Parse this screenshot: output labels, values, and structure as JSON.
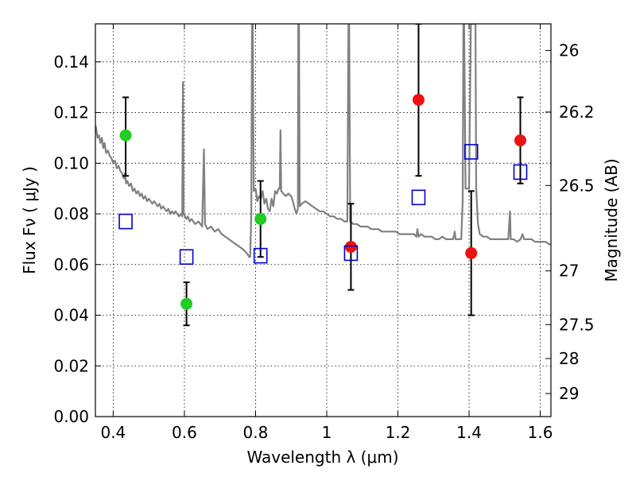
{
  "chart_data": {
    "type": "scatter",
    "xlabel": "Wavelength  λ (μm)",
    "ylabel": "Flux  Fν  ( μJy )",
    "y2label": "Magnitude (AB)",
    "xlim": [
      0.35,
      1.63
    ],
    "ylim": [
      0.0,
      0.155
    ],
    "grid": true,
    "x_ticks": [
      {
        "value": 0.4,
        "label": "0.4"
      },
      {
        "value": 0.6,
        "label": "0.6"
      },
      {
        "value": 0.8,
        "label": "0.8"
      },
      {
        "value": 1.0,
        "label": "1"
      },
      {
        "value": 1.2,
        "label": "1.2"
      },
      {
        "value": 1.4,
        "label": "1.4"
      },
      {
        "value": 1.6,
        "label": "1.6"
      }
    ],
    "y_ticks": [
      {
        "value": 0.0,
        "label": "0.00"
      },
      {
        "value": 0.02,
        "label": "0.02"
      },
      {
        "value": 0.04,
        "label": "0.04"
      },
      {
        "value": 0.06,
        "label": "0.06"
      },
      {
        "value": 0.08,
        "label": "0.08"
      },
      {
        "value": 0.1,
        "label": "0.10"
      },
      {
        "value": 0.12,
        "label": "0.12"
      },
      {
        "value": 0.14,
        "label": "0.14"
      }
    ],
    "y2_ticks": [
      {
        "flux": 0.1445,
        "label": "26"
      },
      {
        "flux": 0.1202,
        "label": "26.2"
      },
      {
        "flux": 0.0912,
        "label": "26.5"
      },
      {
        "flux": 0.0575,
        "label": "27"
      },
      {
        "flux": 0.0363,
        "label": "27.5"
      },
      {
        "flux": 0.0229,
        "label": "28"
      },
      {
        "flux": 0.0091,
        "label": "29"
      }
    ],
    "series": [
      {
        "name": "green-detections",
        "color": "#22cc22",
        "marker": "circle",
        "points": [
          {
            "x": 0.435,
            "y": 0.111,
            "err_lo": 0.095,
            "err_hi": 0.126
          },
          {
            "x": 0.606,
            "y": 0.0445,
            "err_lo": 0.036,
            "err_hi": 0.053
          },
          {
            "x": 0.814,
            "y": 0.078,
            "err_lo": 0.063,
            "err_hi": 0.093
          }
        ]
      },
      {
        "name": "red-detections",
        "color": "#ee1111",
        "marker": "circle",
        "points": [
          {
            "x": 1.068,
            "y": 0.067,
            "err_lo": 0.05,
            "err_hi": 0.084
          },
          {
            "x": 1.258,
            "y": 0.125,
            "err_lo": 0.095,
            "err_hi": 0.155
          },
          {
            "x": 1.406,
            "y": 0.0645,
            "err_lo": 0.04,
            "err_hi": 0.089
          },
          {
            "x": 1.544,
            "y": 0.109,
            "err_lo": 0.092,
            "err_hi": 0.126
          }
        ]
      },
      {
        "name": "model-photometry",
        "color": "#0000cc",
        "marker": "square-open",
        "points": [
          {
            "x": 0.435,
            "y": 0.077
          },
          {
            "x": 0.606,
            "y": 0.063
          },
          {
            "x": 0.814,
            "y": 0.0635
          },
          {
            "x": 1.068,
            "y": 0.0645
          },
          {
            "x": 1.258,
            "y": 0.0865
          },
          {
            "x": 1.406,
            "y": 0.1045
          },
          {
            "x": 1.544,
            "y": 0.0965
          }
        ]
      }
    ],
    "spectrum": {
      "name": "model-sed",
      "color": "#808080",
      "points": [
        [
          0.35,
          0.115
        ],
        [
          0.352,
          0.114
        ],
        [
          0.356,
          0.11
        ],
        [
          0.36,
          0.111
        ],
        [
          0.364,
          0.108
        ],
        [
          0.368,
          0.11
        ],
        [
          0.372,
          0.106
        ],
        [
          0.376,
          0.108
        ],
        [
          0.38,
          0.104
        ],
        [
          0.385,
          0.105
        ],
        [
          0.39,
          0.103
        ],
        [
          0.395,
          0.102
        ],
        [
          0.4,
          0.1
        ],
        [
          0.405,
          0.101
        ],
        [
          0.41,
          0.098
        ],
        [
          0.415,
          0.099
        ],
        [
          0.42,
          0.097
        ],
        [
          0.425,
          0.096
        ],
        [
          0.43,
          0.094
        ],
        [
          0.433,
          0.096
        ],
        [
          0.436,
          0.092
        ],
        [
          0.44,
          0.093
        ],
        [
          0.445,
          0.091
        ],
        [
          0.45,
          0.092
        ],
        [
          0.455,
          0.089
        ],
        [
          0.46,
          0.09
        ],
        [
          0.465,
          0.088
        ],
        [
          0.47,
          0.089
        ],
        [
          0.475,
          0.087
        ],
        [
          0.48,
          0.088
        ],
        [
          0.485,
          0.086
        ],
        [
          0.49,
          0.087
        ],
        [
          0.495,
          0.085
        ],
        [
          0.5,
          0.086
        ],
        [
          0.505,
          0.085
        ],
        [
          0.51,
          0.084
        ],
        [
          0.515,
          0.085
        ],
        [
          0.52,
          0.084
        ],
        [
          0.525,
          0.083
        ],
        [
          0.53,
          0.084
        ],
        [
          0.535,
          0.082
        ],
        [
          0.54,
          0.083
        ],
        [
          0.545,
          0.082
        ],
        [
          0.55,
          0.081
        ],
        [
          0.555,
          0.082
        ],
        [
          0.56,
          0.08
        ],
        [
          0.565,
          0.081
        ],
        [
          0.57,
          0.08
        ],
        [
          0.575,
          0.081
        ],
        [
          0.58,
          0.08
        ],
        [
          0.585,
          0.079
        ],
        [
          0.59,
          0.08
        ],
        [
          0.594,
          0.079
        ],
        [
          0.596,
          0.132
        ],
        [
          0.598,
          0.08
        ],
        [
          0.602,
          0.079
        ],
        [
          0.606,
          0.078
        ],
        [
          0.61,
          0.079
        ],
        [
          0.615,
          0.077
        ],
        [
          0.62,
          0.078
        ],
        [
          0.63,
          0.076
        ],
        [
          0.64,
          0.077
        ],
        [
          0.65,
          0.075
        ],
        [
          0.655,
          0.1055
        ],
        [
          0.658,
          0.076
        ],
        [
          0.665,
          0.074
        ],
        [
          0.675,
          0.075
        ],
        [
          0.685,
          0.073
        ],
        [
          0.695,
          0.074
        ],
        [
          0.705,
          0.072
        ],
        [
          0.715,
          0.071
        ],
        [
          0.725,
          0.07
        ],
        [
          0.735,
          0.069
        ],
        [
          0.745,
          0.068
        ],
        [
          0.755,
          0.067
        ],
        [
          0.765,
          0.066
        ],
        [
          0.772,
          0.065
        ],
        [
          0.778,
          0.064
        ],
        [
          0.782,
          0.063
        ],
        [
          0.785,
          0.063
        ],
        [
          0.788,
          0.08
        ],
        [
          0.79,
          0.155
        ],
        [
          0.792,
          0.155
        ],
        [
          0.795,
          0.089
        ],
        [
          0.8,
          0.09
        ],
        [
          0.805,
          0.085
        ],
        [
          0.81,
          0.087
        ],
        [
          0.815,
          0.086
        ],
        [
          0.82,
          0.089
        ],
        [
          0.825,
          0.084
        ],
        [
          0.83,
          0.086
        ],
        [
          0.835,
          0.082
        ],
        [
          0.84,
          0.081
        ],
        [
          0.845,
          0.086
        ],
        [
          0.85,
          0.083
        ],
        [
          0.855,
          0.089
        ],
        [
          0.86,
          0.088
        ],
        [
          0.865,
          0.09
        ],
        [
          0.868,
          0.09
        ],
        [
          0.87,
          0.113
        ],
        [
          0.872,
          0.089
        ],
        [
          0.878,
          0.088
        ],
        [
          0.885,
          0.087
        ],
        [
          0.892,
          0.088
        ],
        [
          0.9,
          0.087
        ],
        [
          0.905,
          0.085
        ],
        [
          0.91,
          0.082
        ],
        [
          0.915,
          0.08
        ],
        [
          0.919,
          0.082
        ],
        [
          0.92,
          0.155
        ],
        [
          0.922,
          0.155
        ],
        [
          0.924,
          0.083
        ],
        [
          0.93,
          0.084
        ],
        [
          0.94,
          0.085
        ],
        [
          0.95,
          0.084
        ],
        [
          0.96,
          0.083
        ],
        [
          0.97,
          0.082
        ],
        [
          0.98,
          0.081
        ],
        [
          0.99,
          0.081
        ],
        [
          1.0,
          0.08
        ],
        [
          1.01,
          0.079
        ],
        [
          1.02,
          0.079
        ],
        [
          1.03,
          0.078
        ],
        [
          1.04,
          0.078
        ],
        [
          1.05,
          0.077
        ],
        [
          1.058,
          0.077
        ],
        [
          1.061,
          0.155
        ],
        [
          1.063,
          0.155
        ],
        [
          1.066,
          0.077
        ],
        [
          1.075,
          0.076
        ],
        [
          1.085,
          0.076
        ],
        [
          1.095,
          0.075
        ],
        [
          1.105,
          0.075
        ],
        [
          1.115,
          0.075
        ],
        [
          1.125,
          0.074
        ],
        [
          1.135,
          0.074
        ],
        [
          1.145,
          0.074
        ],
        [
          1.155,
          0.073
        ],
        [
          1.165,
          0.073
        ],
        [
          1.175,
          0.073
        ],
        [
          1.185,
          0.073
        ],
        [
          1.195,
          0.073
        ],
        [
          1.205,
          0.072
        ],
        [
          1.215,
          0.072
        ],
        [
          1.225,
          0.072
        ],
        [
          1.235,
          0.072
        ],
        [
          1.245,
          0.072
        ],
        [
          1.252,
          0.071
        ],
        [
          1.255,
          0.074
        ],
        [
          1.258,
          0.071
        ],
        [
          1.265,
          0.072
        ],
        [
          1.275,
          0.071
        ],
        [
          1.285,
          0.071
        ],
        [
          1.295,
          0.071
        ],
        [
          1.305,
          0.07
        ],
        [
          1.315,
          0.07
        ],
        [
          1.325,
          0.071
        ],
        [
          1.335,
          0.07
        ],
        [
          1.345,
          0.07
        ],
        [
          1.355,
          0.07
        ],
        [
          1.36,
          0.073
        ],
        [
          1.362,
          0.07
        ],
        [
          1.37,
          0.07
        ],
        [
          1.378,
          0.07
        ],
        [
          1.382,
          0.085
        ],
        [
          1.384,
          0.155
        ],
        [
          1.386,
          0.155
        ],
        [
          1.39,
          0.09
        ],
        [
          1.395,
          0.09
        ],
        [
          1.4,
          0.09
        ],
        [
          1.405,
          0.155
        ],
        [
          1.409,
          0.155
        ],
        [
          1.412,
          0.155
        ],
        [
          1.418,
          0.155
        ],
        [
          1.42,
          0.09
        ],
        [
          1.425,
          0.076
        ],
        [
          1.43,
          0.072
        ],
        [
          1.44,
          0.071
        ],
        [
          1.45,
          0.071
        ],
        [
          1.46,
          0.07
        ],
        [
          1.47,
          0.07
        ],
        [
          1.48,
          0.07
        ],
        [
          1.49,
          0.07
        ],
        [
          1.5,
          0.07
        ],
        [
          1.51,
          0.07
        ],
        [
          1.515,
          0.081
        ],
        [
          1.517,
          0.07
        ],
        [
          1.525,
          0.07
        ],
        [
          1.535,
          0.069
        ],
        [
          1.545,
          0.07
        ],
        [
          1.55,
          0.072
        ],
        [
          1.555,
          0.07
        ],
        [
          1.565,
          0.07
        ],
        [
          1.575,
          0.07
        ],
        [
          1.585,
          0.069
        ],
        [
          1.595,
          0.069
        ],
        [
          1.605,
          0.069
        ],
        [
          1.615,
          0.069
        ],
        [
          1.625,
          0.068
        ],
        [
          1.63,
          0.068
        ]
      ]
    }
  }
}
